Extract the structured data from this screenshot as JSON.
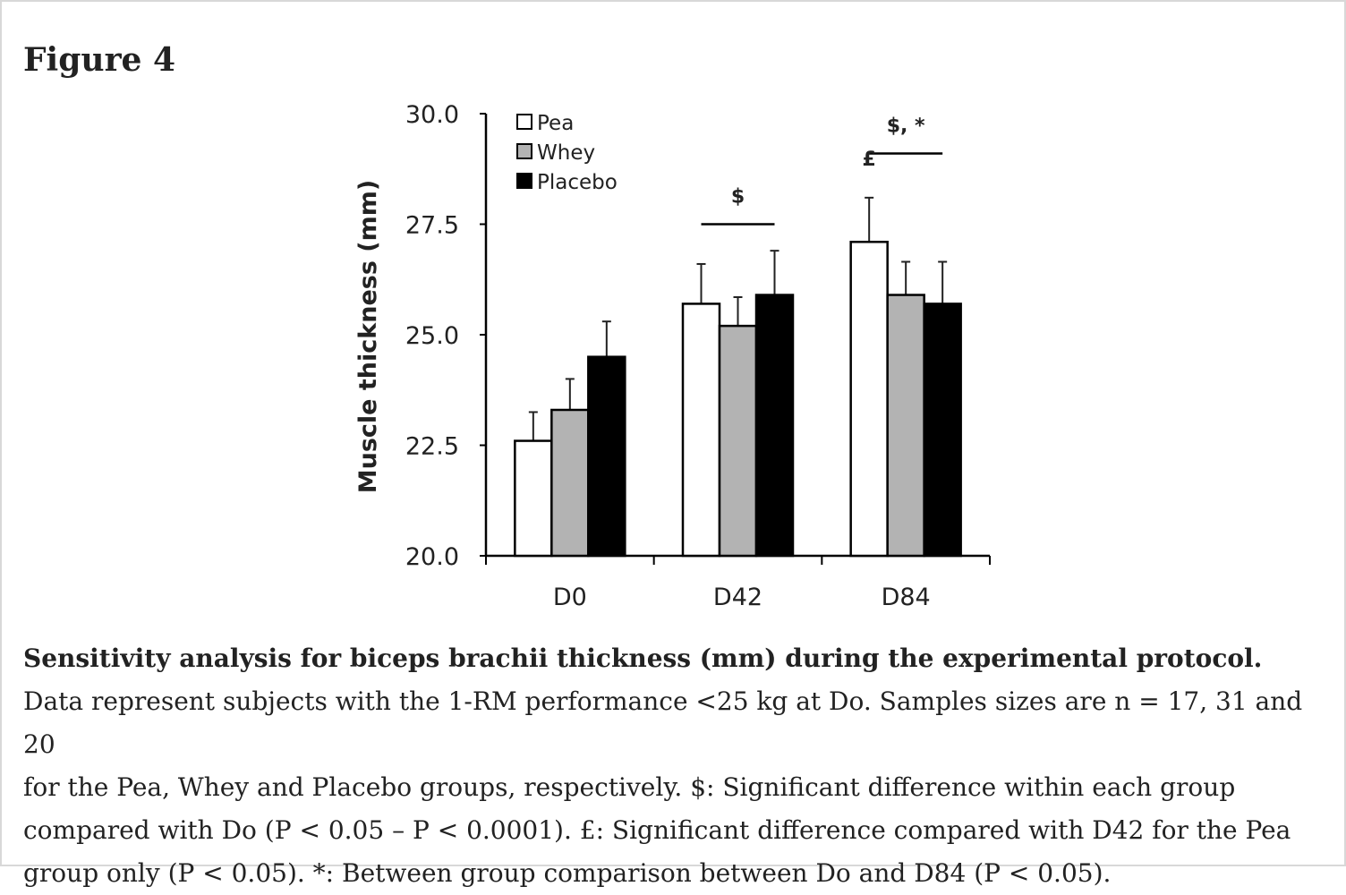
{
  "figure_label": "Figure 4",
  "caption": {
    "title": "Sensitivity analysis for biceps brachii thickness (mm) during the experimental protocol.",
    "lines": [
      "Data represent subjects with the 1-RM performance <25 kg at Do. Samples sizes are n = 17, 31 and 20",
      "for the Pea, Whey and Placebo groups, respectively. $: Significant difference within each group",
      "compared with Do (P < 0.05 – P < 0.0001). £: Significant difference compared with D42 for the Pea",
      "group only (P < 0.05). *: Between group comparison between Do and D84 (P < 0.05)."
    ]
  },
  "chart_data": {
    "type": "bar",
    "ylabel": "Muscle thickness (mm)",
    "xlabel": "",
    "ylim": [
      20.0,
      30.0
    ],
    "yticks": [
      "20.0",
      "22.5",
      "25.0",
      "27.5",
      "30.0"
    ],
    "categories": [
      "D0",
      "D42",
      "D84"
    ],
    "legend_position": "top-left",
    "series": [
      {
        "name": "Pea",
        "color": "#ffffff",
        "values": [
          22.6,
          25.7,
          27.1
        ],
        "errors": [
          0.65,
          0.9,
          1.0
        ]
      },
      {
        "name": "Whey",
        "color": "#b3b3b3",
        "values": [
          23.3,
          25.2,
          25.9
        ],
        "errors": [
          0.7,
          0.65,
          0.75
        ]
      },
      {
        "name": "Placebo",
        "color": "#000000",
        "values": [
          24.5,
          25.9,
          25.7
        ],
        "errors": [
          0.8,
          1.0,
          0.95
        ]
      }
    ],
    "annotations": [
      {
        "text": "$",
        "category": "D42",
        "kind": "bracket",
        "level": 27.5
      },
      {
        "text": "$, *",
        "category": "D84",
        "kind": "bracket",
        "level": 29.1
      },
      {
        "text": "£",
        "category": "D84",
        "kind": "mark",
        "series": "Pea",
        "level": 28.5
      }
    ]
  }
}
